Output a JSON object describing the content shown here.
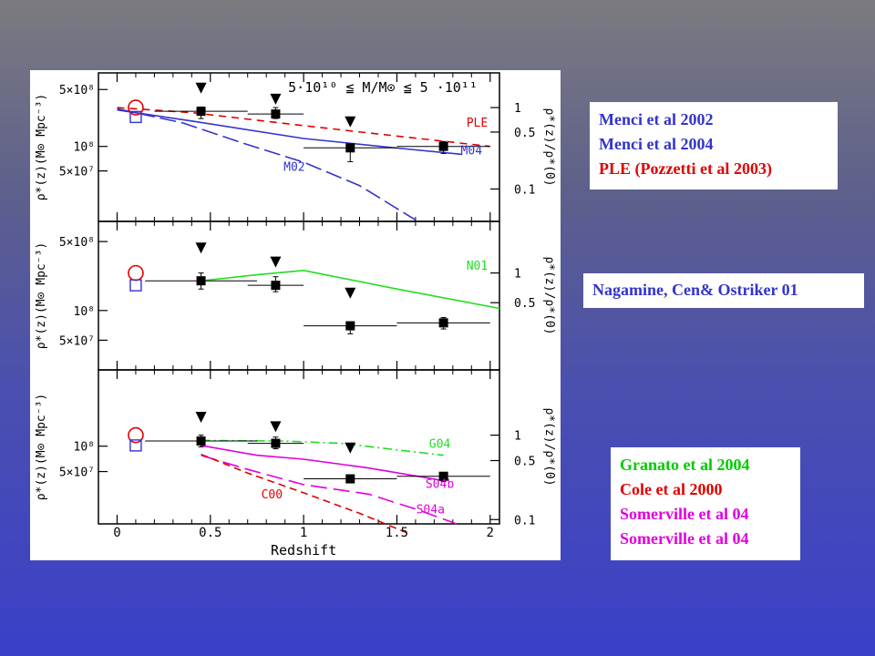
{
  "legends": {
    "top": [
      {
        "text": "Menci et al 2002",
        "color": "#3333cc"
      },
      {
        "text": "Menci et al 2004",
        "color": "#3333cc"
      },
      {
        "text": "PLE (Pozzetti et al 2003)",
        "color": "#e00000"
      }
    ],
    "middle": [
      {
        "text": "Nagamine, Cen& Ostriker 01",
        "color": "#3333cc"
      }
    ],
    "bottom": [
      {
        "text": "Granato et al 2004",
        "color": "#00cc00"
      },
      {
        "text": "Cole et al 2000",
        "color": "#e00000"
      },
      {
        "text": "Somerville et al 04",
        "color": "#e000e0"
      },
      {
        "text": "Somerville et al 04",
        "color": "#e000e0"
      }
    ]
  },
  "chart_data": {
    "type": "line",
    "title": "5·10¹⁰ ≦ M/M⊙ ≦ 5 ·10¹¹",
    "xlabel": "Redshift",
    "xlim": [
      -0.1,
      2.05
    ],
    "x_ticks": [
      "0",
      "0.5",
      "1",
      "1.5",
      "2"
    ],
    "y_scale": "log",
    "left_ylabel": "ρ*(z)(M⊙ Mpc⁻³)",
    "right_ylabel": "ρ*(z)/ρ*(0)",
    "panels": [
      {
        "ylim": [
          12000000.0,
          800000000.0
        ],
        "left_ticks": [
          {
            "label": "5×10⁸",
            "value": 500000000.0
          },
          {
            "label": "10⁸",
            "value": 100000000.0
          },
          {
            "label": "5×10⁷",
            "value": 50000000.0
          }
        ],
        "right_ticks": [
          {
            "label": "1",
            "value": 1
          },
          {
            "label": "0.5",
            "value": 0.5
          },
          {
            "label": "0.1",
            "value": 0.1
          }
        ],
        "ref_circle": {
          "x": 0.1,
          "y": 300000000.0
        },
        "ref_square": {
          "x": 0.1,
          "y": 230000000.0
        },
        "points": [
          {
            "x": 0.45,
            "y": 270000000.0,
            "xerr": 0.25,
            "yerr_lo": 50000000.0,
            "yerr_hi": 35000000.0
          },
          {
            "x": 0.85,
            "y": 250000000.0,
            "xerr": 0.15,
            "yerr_lo": 30000000.0,
            "yerr_hi": 50000000.0
          },
          {
            "x": 1.25,
            "y": 96000000.0,
            "xerr": 0.25,
            "yerr_lo": 31000000.0,
            "yerr_hi": 0
          },
          {
            "x": 1.75,
            "y": 100000000.0,
            "xerr": 0.25,
            "yerr_lo": 18000000.0,
            "yerr_hi": 15000000.0
          }
        ],
        "upper_limits": [
          {
            "x": 0.45,
            "y": 520000000.0
          },
          {
            "x": 0.85,
            "y": 380000000.0
          },
          {
            "x": 1.25,
            "y": 200000000.0
          }
        ],
        "series": [
          {
            "name": "PLE",
            "color": "#e00000",
            "dash": "8,6",
            "x": [
              0.0,
              0.4,
              1.0,
              1.55,
              2.0
            ],
            "y": [
              300000000.0,
              260000000.0,
              180000000.0,
              130000000.0,
              100000000.0
            ]
          },
          {
            "name": "M04",
            "color": "#3333cc",
            "dash": "",
            "x": [
              0.0,
              0.4,
              1.0,
              1.55,
              1.85
            ],
            "y": [
              280000000.0,
              205000000.0,
              125000000.0,
              93000000.0,
              80000000.0
            ]
          },
          {
            "name": "M02",
            "color": "#3333cc",
            "dash": "18,6",
            "x": [
              0.0,
              0.35,
              0.7,
              1.0,
              1.3,
              1.6
            ],
            "y": [
              290000000.0,
              195000000.0,
              105000000.0,
              64000000.0,
              33000000.0,
              12500000.0
            ]
          }
        ],
        "labels": [
          {
            "text": "PLE",
            "color": "#e00000",
            "x": 1.93,
            "y": 175000000.0
          },
          {
            "text": "M04",
            "color": "#3333cc",
            "x": 1.9,
            "y": 80000000.0
          },
          {
            "text": "M02",
            "color": "#3333cc",
            "x": 0.95,
            "y": 50000000.0
          }
        ]
      },
      {
        "ylim": [
          25000000.0,
          800000000.0
        ],
        "left_ticks": [
          {
            "label": "5×10⁸",
            "value": 500000000.0
          },
          {
            "label": "10⁸",
            "value": 100000000.0
          },
          {
            "label": "5×10⁷",
            "value": 50000000.0
          }
        ],
        "right_ticks": [
          {
            "label": "1",
            "value": 1
          },
          {
            "label": "0.5",
            "value": 0.5
          }
        ],
        "ref_circle": {
          "x": 0.1,
          "y": 240000000.0
        },
        "ref_square": {
          "x": 0.1,
          "y": 180000000.0
        },
        "points": [
          {
            "x": 0.45,
            "y": 200000000.0,
            "xerr": 0.3,
            "yerr_lo": 35000000.0,
            "yerr_hi": 40000000.0
          },
          {
            "x": 0.85,
            "y": 180000000.0,
            "xerr": 0.15,
            "yerr_lo": 25000000.0,
            "yerr_hi": 40000000.0
          },
          {
            "x": 1.25,
            "y": 70000000.0,
            "xerr": 0.25,
            "yerr_lo": 12000000.0,
            "yerr_hi": 0
          },
          {
            "x": 1.75,
            "y": 75000000.0,
            "xerr": 0.25,
            "yerr_lo": 10000000.0,
            "yerr_hi": 10000000.0
          }
        ],
        "upper_limits": [
          {
            "x": 0.45,
            "y": 430000000.0
          },
          {
            "x": 0.85,
            "y": 310000000.0
          },
          {
            "x": 1.25,
            "y": 150000000.0
          }
        ],
        "series": [
          {
            "name": "N01",
            "color": "#22dd22",
            "dash": "",
            "x": [
              0.45,
              0.75,
              1.0,
              1.5,
              2.05
            ],
            "y": [
              200000000.0,
              230000000.0,
              255000000.0,
              165000000.0,
              105000000.0
            ]
          }
        ],
        "labels": [
          {
            "text": "N01",
            "color": "#22dd22",
            "x": 1.93,
            "y": 260000000.0
          }
        ]
      },
      {
        "ylim": [
          12000000.0,
          800000000.0
        ],
        "left_ticks": [
          {
            "label": "10⁸",
            "value": 100000000.0
          },
          {
            "label": "5×10⁷",
            "value": 50000000.0
          }
        ],
        "right_ticks": [
          {
            "label": "1",
            "value": 1
          },
          {
            "label": "0.5",
            "value": 0.5
          },
          {
            "label": "0.1",
            "value": 0.1
          }
        ],
        "ref_circle": {
          "x": 0.1,
          "y": 135000000.0
        },
        "ref_square": {
          "x": 0.1,
          "y": 102000000.0
        },
        "points": [
          {
            "x": 0.45,
            "y": 115000000.0,
            "xerr": 0.3,
            "yerr_lo": 17000000.0,
            "yerr_hi": 20000000.0
          },
          {
            "x": 0.85,
            "y": 108000000.0,
            "xerr": 0.15,
            "yerr_lo": 15000000.0,
            "yerr_hi": 20000000.0
          },
          {
            "x": 1.25,
            "y": 41000000.0,
            "xerr": 0.25,
            "yerr_lo": 4000000.0,
            "yerr_hi": 0
          },
          {
            "x": 1.75,
            "y": 44000000.0,
            "xerr": 0.25,
            "yerr_lo": 6000000.0,
            "yerr_hi": 4000000.0
          }
        ],
        "upper_limits": [
          {
            "x": 0.45,
            "y": 220000000.0
          },
          {
            "x": 0.85,
            "y": 170000000.0
          },
          {
            "x": 1.25,
            "y": 95000000.0
          }
        ],
        "series": [
          {
            "name": "G04",
            "color": "#22dd22",
            "dash": "10,4,2,4",
            "x": [
              0.45,
              0.9,
              1.2,
              1.75
            ],
            "y": [
              117000000.0,
              115000000.0,
              108000000.0,
              78000000.0
            ]
          },
          {
            "name": "S04b",
            "color": "#e000e0",
            "dash": "",
            "x": [
              0.45,
              0.75,
              1.0,
              1.35,
              1.75
            ],
            "y": [
              102000000.0,
              78000000.0,
              70000000.0,
              55000000.0,
              39000000.0
            ]
          },
          {
            "name": "S04a",
            "color": "#e000e0",
            "dash": "18,7",
            "x": [
              0.45,
              0.7,
              1.0,
              1.35,
              1.6,
              1.82
            ],
            "y": [
              78000000.0,
              53000000.0,
              35000000.0,
              27000000.0,
              18000000.0,
              12000000.0
            ]
          },
          {
            "name": "C00",
            "color": "#e00000",
            "dash": "8,5",
            "x": [
              0.45,
              0.7,
              1.0,
              1.3,
              1.55
            ],
            "y": [
              80000000.0,
              48000000.0,
              28000000.0,
              16000000.0,
              9500000.0
            ]
          }
        ],
        "labels": [
          {
            "text": "G04",
            "color": "#22dd22",
            "x": 1.73,
            "y": 95000000.0
          },
          {
            "text": "S04b",
            "color": "#e000e0",
            "x": 1.73,
            "y": 32000000.0
          },
          {
            "text": "S04a",
            "color": "#e000e0",
            "x": 1.68,
            "y": 16000000.0
          },
          {
            "text": "C00",
            "color": "#e00000",
            "x": 0.83,
            "y": 24000000.0
          }
        ]
      }
    ]
  }
}
